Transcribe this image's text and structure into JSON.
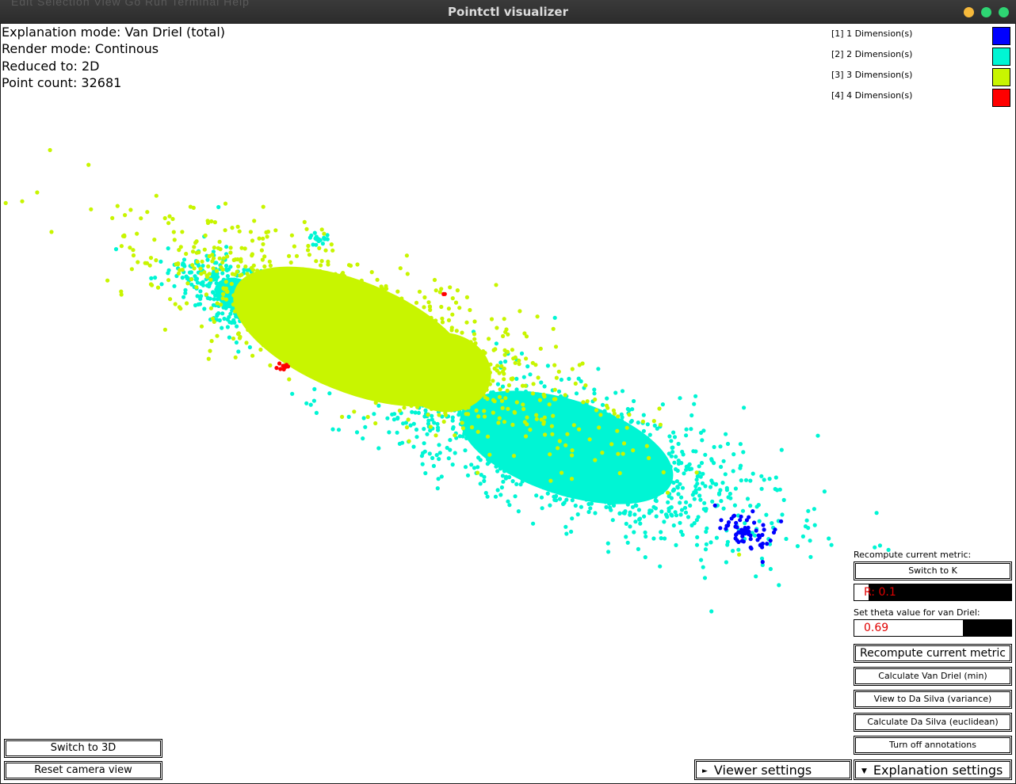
{
  "window": {
    "title": "Pointctl visualizer",
    "background_menu_text": "Edit  Selection  View  Go  Run  Terminal  Help",
    "button_colors": {
      "minimize": "#f6b93b",
      "maximize": "#2ed573",
      "close": "#2ed573"
    }
  },
  "info": {
    "explanation_mode": "Explanation mode: Van Driel (total)",
    "render_mode": "Render mode: Continous",
    "reduced_to": "Reduced to: 2D",
    "point_count": "Point count: 32681"
  },
  "legend": [
    {
      "label": "[1] 1 Dimension(s)",
      "color": "#0000ff"
    },
    {
      "label": "[2] 2 Dimension(s)",
      "color": "#00f5d4"
    },
    {
      "label": "[3] 3 Dimension(s)",
      "color": "#c8f500"
    },
    {
      "label": "[4] 4 Dimension(s)",
      "color": "#ff0000"
    }
  ],
  "panel": {
    "recompute_label": "Recompute current metric:",
    "switch_k_button": "Switch to K",
    "r_value": "R: 0.1",
    "r_fraction": 0.09,
    "theta_label": "Set theta value for van Driel:",
    "theta_value": "0.69",
    "theta_fraction": 0.69,
    "recompute_button": "Recompute current metric",
    "calc_van_driel_min": "Calculate Van Driel (min)",
    "view_da_silva_variance": "View to Da Silva (variance)",
    "calc_da_silva_euclidean": "Calculate Da Silva (euclidean)",
    "turn_off_annotations": "Turn off annotations"
  },
  "bottom_left": {
    "switch_3d": "Switch to 3D",
    "reset_camera": "Reset camera view"
  },
  "tabs": {
    "viewer_settings": "Viewer settings",
    "viewer_arrow": "►",
    "explanation_settings": "Explanation settings",
    "explanation_arrow": "▼"
  },
  "chart_data": {
    "type": "scatter",
    "point_count": 32681,
    "color_encoding": "number of dimensions explaining each point",
    "clusters": [
      {
        "series": "[3] 3 Dimension(s)",
        "color": "#c8f500",
        "region": "upper-left main mass"
      },
      {
        "series": "[2] 2 Dimension(s)",
        "color": "#00f5d4",
        "region": "lower-right mass and upper-left fringe"
      },
      {
        "series": "[1] 1 Dimension(s)",
        "color": "#0000ff",
        "region": "small far lower-right cluster"
      },
      {
        "series": "[4] 4 Dimension(s)",
        "color": "#ff0000",
        "region": "tiny patches"
      }
    ]
  }
}
